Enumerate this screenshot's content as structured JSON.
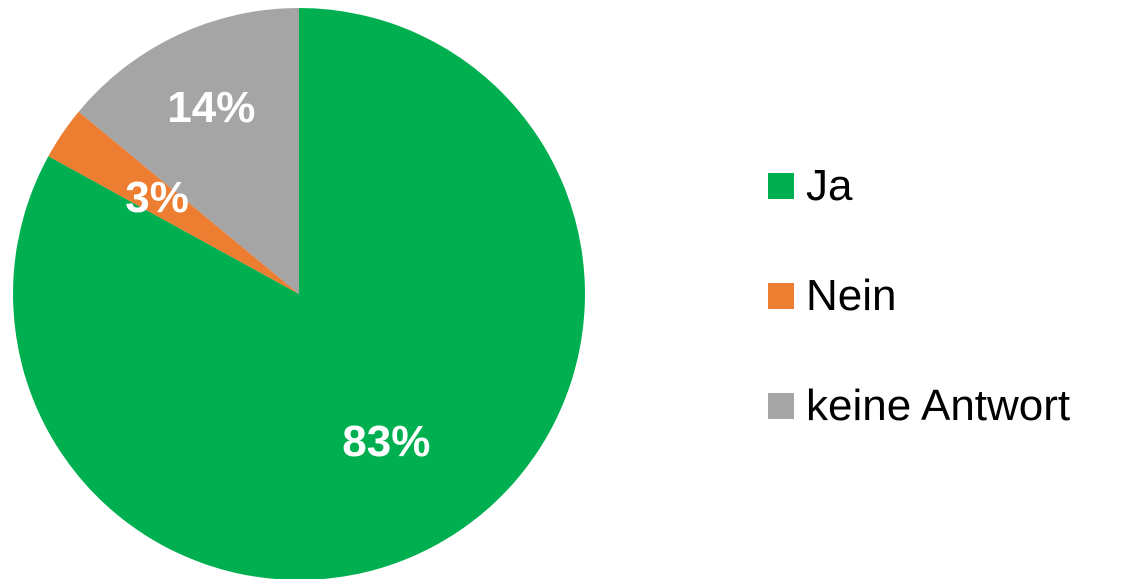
{
  "chart_data": {
    "type": "pie",
    "categories": [
      "Ja",
      "Nein",
      "keine Antwort"
    ],
    "values": [
      83,
      3,
      14
    ],
    "data_labels": [
      "83%",
      "3%",
      "14%"
    ],
    "colors": [
      "#00b050",
      "#ed7d31",
      "#a5a5a5"
    ],
    "start_angle_deg": 0,
    "direction": "clockwise",
    "legend_position": "right"
  }
}
